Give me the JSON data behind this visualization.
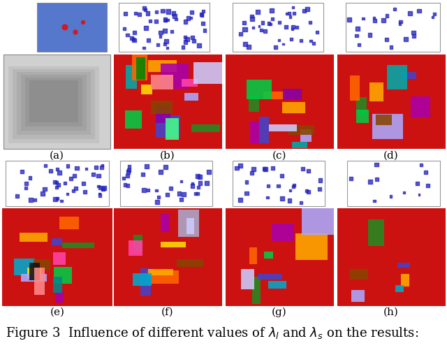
{
  "caption": "Figure 3  Influence of different values of λₗ and λₛ on the results:",
  "caption_fontsize": 13,
  "labels": [
    "(a)",
    "(b)",
    "(c)",
    "(d)",
    "(e)",
    "(f)",
    "(g)",
    "(h)"
  ],
  "background_color": "#ffffff",
  "figsize": [
    6.4,
    4.98
  ],
  "dpi": 100
}
